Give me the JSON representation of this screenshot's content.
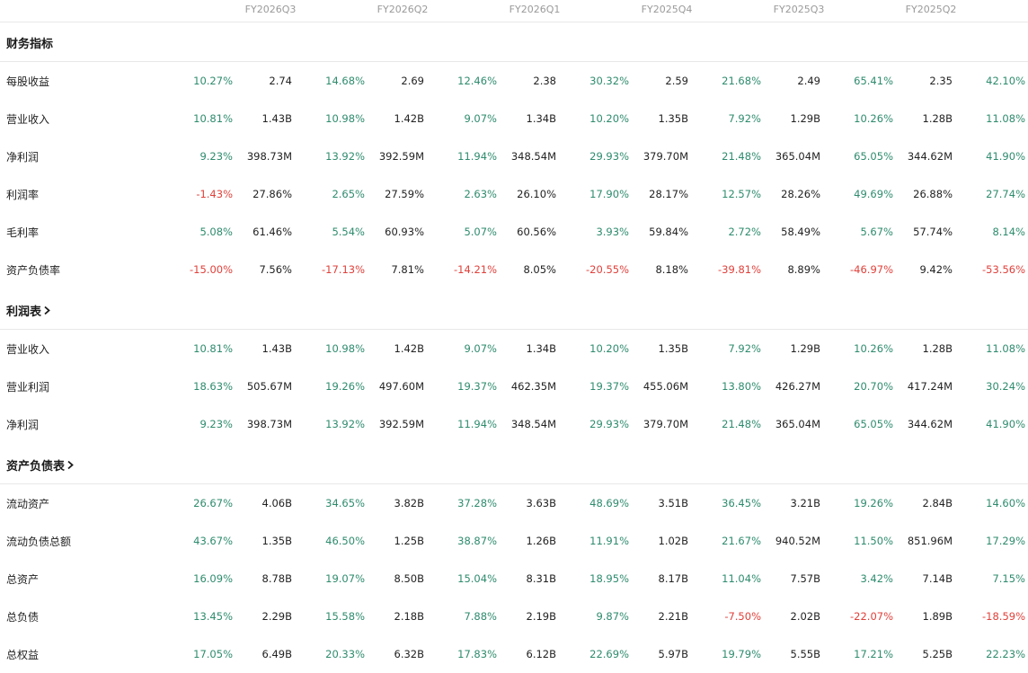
{
  "columns": [
    "FY2026Q3",
    "FY2026Q2",
    "FY2026Q1",
    "FY2025Q4",
    "FY2025Q3",
    "FY2025Q2"
  ],
  "colors": {
    "positive": "#2e8b6e",
    "negative": "#e0413b",
    "text": "#222222",
    "muted": "#9a9a9a",
    "divider": "#e8e8e8"
  },
  "sections": [
    {
      "title": "财务指标",
      "has_chevron": false,
      "rows": [
        {
          "label": "每股收益",
          "cells": [
            {
              "pct": "10.27%",
              "val": "2.74"
            },
            {
              "pct": "14.68%",
              "val": "2.69"
            },
            {
              "pct": "12.46%",
              "val": "2.38"
            },
            {
              "pct": "30.32%",
              "val": "2.59"
            },
            {
              "pct": "21.68%",
              "val": "2.49"
            },
            {
              "pct": "65.41%",
              "val": "2.35"
            },
            {
              "pct": "42.10%",
              "val": ""
            }
          ]
        },
        {
          "label": "营业收入",
          "cells": [
            {
              "pct": "10.81%",
              "val": "1.43B"
            },
            {
              "pct": "10.98%",
              "val": "1.42B"
            },
            {
              "pct": "9.07%",
              "val": "1.34B"
            },
            {
              "pct": "10.20%",
              "val": "1.35B"
            },
            {
              "pct": "7.92%",
              "val": "1.29B"
            },
            {
              "pct": "10.26%",
              "val": "1.28B"
            },
            {
              "pct": "11.08%",
              "val": ""
            }
          ]
        },
        {
          "label": "净利润",
          "cells": [
            {
              "pct": "9.23%",
              "val": "398.73M"
            },
            {
              "pct": "13.92%",
              "val": "392.59M"
            },
            {
              "pct": "11.94%",
              "val": "348.54M"
            },
            {
              "pct": "29.93%",
              "val": "379.70M"
            },
            {
              "pct": "21.48%",
              "val": "365.04M"
            },
            {
              "pct": "65.05%",
              "val": "344.62M"
            },
            {
              "pct": "41.90%",
              "val": ""
            }
          ]
        },
        {
          "label": "利润率",
          "cells": [
            {
              "pct": "-1.43%",
              "val": "27.86%"
            },
            {
              "pct": "2.65%",
              "val": "27.59%"
            },
            {
              "pct": "2.63%",
              "val": "26.10%"
            },
            {
              "pct": "17.90%",
              "val": "28.17%"
            },
            {
              "pct": "12.57%",
              "val": "28.26%"
            },
            {
              "pct": "49.69%",
              "val": "26.88%"
            },
            {
              "pct": "27.74%",
              "val": ""
            }
          ]
        },
        {
          "label": "毛利率",
          "cells": [
            {
              "pct": "5.08%",
              "val": "61.46%"
            },
            {
              "pct": "5.54%",
              "val": "60.93%"
            },
            {
              "pct": "5.07%",
              "val": "60.56%"
            },
            {
              "pct": "3.93%",
              "val": "59.84%"
            },
            {
              "pct": "2.72%",
              "val": "58.49%"
            },
            {
              "pct": "5.67%",
              "val": "57.74%"
            },
            {
              "pct": "8.14%",
              "val": ""
            }
          ]
        },
        {
          "label": "资产负债率",
          "cells": [
            {
              "pct": "-15.00%",
              "val": "7.56%"
            },
            {
              "pct": "-17.13%",
              "val": "7.81%"
            },
            {
              "pct": "-14.21%",
              "val": "8.05%"
            },
            {
              "pct": "-20.55%",
              "val": "8.18%"
            },
            {
              "pct": "-39.81%",
              "val": "8.89%"
            },
            {
              "pct": "-46.97%",
              "val": "9.42%"
            },
            {
              "pct": "-53.56%",
              "val": ""
            }
          ]
        }
      ]
    },
    {
      "title": "利润表",
      "has_chevron": true,
      "rows": [
        {
          "label": "营业收入",
          "cells": [
            {
              "pct": "10.81%",
              "val": "1.43B"
            },
            {
              "pct": "10.98%",
              "val": "1.42B"
            },
            {
              "pct": "9.07%",
              "val": "1.34B"
            },
            {
              "pct": "10.20%",
              "val": "1.35B"
            },
            {
              "pct": "7.92%",
              "val": "1.29B"
            },
            {
              "pct": "10.26%",
              "val": "1.28B"
            },
            {
              "pct": "11.08%",
              "val": ""
            }
          ]
        },
        {
          "label": "营业利润",
          "cells": [
            {
              "pct": "18.63%",
              "val": "505.67M"
            },
            {
              "pct": "19.26%",
              "val": "497.60M"
            },
            {
              "pct": "19.37%",
              "val": "462.35M"
            },
            {
              "pct": "19.37%",
              "val": "455.06M"
            },
            {
              "pct": "13.80%",
              "val": "426.27M"
            },
            {
              "pct": "20.70%",
              "val": "417.24M"
            },
            {
              "pct": "30.24%",
              "val": ""
            }
          ]
        },
        {
          "label": "净利润",
          "cells": [
            {
              "pct": "9.23%",
              "val": "398.73M"
            },
            {
              "pct": "13.92%",
              "val": "392.59M"
            },
            {
              "pct": "11.94%",
              "val": "348.54M"
            },
            {
              "pct": "29.93%",
              "val": "379.70M"
            },
            {
              "pct": "21.48%",
              "val": "365.04M"
            },
            {
              "pct": "65.05%",
              "val": "344.62M"
            },
            {
              "pct": "41.90%",
              "val": ""
            }
          ]
        }
      ]
    },
    {
      "title": "资产负债表",
      "has_chevron": true,
      "rows": [
        {
          "label": "流动资产",
          "cells": [
            {
              "pct": "26.67%",
              "val": "4.06B"
            },
            {
              "pct": "34.65%",
              "val": "3.82B"
            },
            {
              "pct": "37.28%",
              "val": "3.63B"
            },
            {
              "pct": "48.69%",
              "val": "3.51B"
            },
            {
              "pct": "36.45%",
              "val": "3.21B"
            },
            {
              "pct": "19.26%",
              "val": "2.84B"
            },
            {
              "pct": "14.60%",
              "val": ""
            }
          ]
        },
        {
          "label": "流动负债总额",
          "cells": [
            {
              "pct": "43.67%",
              "val": "1.35B"
            },
            {
              "pct": "46.50%",
              "val": "1.25B"
            },
            {
              "pct": "38.87%",
              "val": "1.26B"
            },
            {
              "pct": "11.91%",
              "val": "1.02B"
            },
            {
              "pct": "21.67%",
              "val": "940.52M"
            },
            {
              "pct": "11.50%",
              "val": "851.96M"
            },
            {
              "pct": "17.29%",
              "val": ""
            }
          ]
        },
        {
          "label": "总资产",
          "cells": [
            {
              "pct": "16.09%",
              "val": "8.78B"
            },
            {
              "pct": "19.07%",
              "val": "8.50B"
            },
            {
              "pct": "15.04%",
              "val": "8.31B"
            },
            {
              "pct": "18.95%",
              "val": "8.17B"
            },
            {
              "pct": "11.04%",
              "val": "7.57B"
            },
            {
              "pct": "3.42%",
              "val": "7.14B"
            },
            {
              "pct": "7.15%",
              "val": ""
            }
          ]
        },
        {
          "label": "总负债",
          "cells": [
            {
              "pct": "13.45%",
              "val": "2.29B"
            },
            {
              "pct": "15.58%",
              "val": "2.18B"
            },
            {
              "pct": "7.88%",
              "val": "2.19B"
            },
            {
              "pct": "9.87%",
              "val": "2.21B"
            },
            {
              "pct": "-7.50%",
              "val": "2.02B"
            },
            {
              "pct": "-22.07%",
              "val": "1.89B"
            },
            {
              "pct": "-18.59%",
              "val": ""
            }
          ]
        },
        {
          "label": "总权益",
          "cells": [
            {
              "pct": "17.05%",
              "val": "6.49B"
            },
            {
              "pct": "20.33%",
              "val": "6.32B"
            },
            {
              "pct": "17.83%",
              "val": "6.12B"
            },
            {
              "pct": "22.69%",
              "val": "5.97B"
            },
            {
              "pct": "19.79%",
              "val": "5.55B"
            },
            {
              "pct": "17.21%",
              "val": "5.25B"
            },
            {
              "pct": "22.23%",
              "val": ""
            }
          ]
        }
      ]
    }
  ]
}
